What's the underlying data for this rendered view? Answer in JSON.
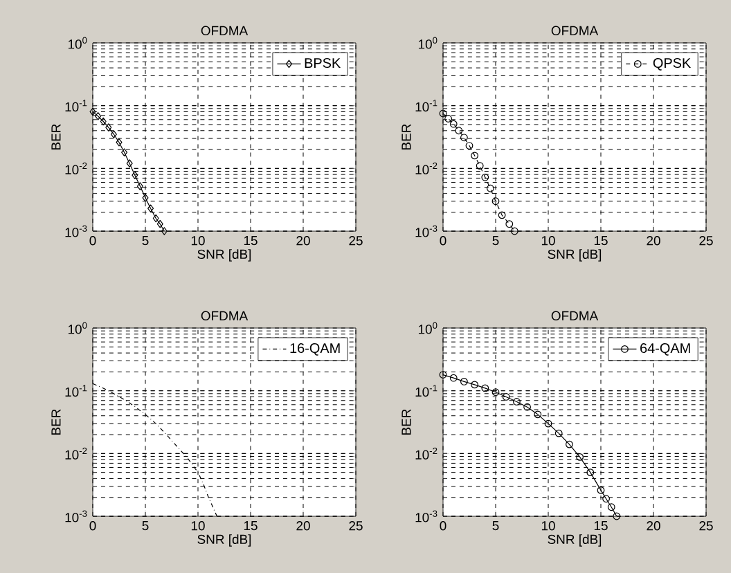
{
  "chart_data": [
    {
      "type": "line",
      "title": "OFDMA",
      "xlabel": "SNR [dB]",
      "ylabel": "BER",
      "log": "y",
      "grid": true,
      "legend": "top right",
      "marker": "diamond",
      "line_style": "solid",
      "xlim": [
        0,
        25
      ],
      "xticks": [
        0,
        5,
        10,
        15,
        20,
        25
      ],
      "ylim": [
        0.001,
        1
      ],
      "yticks": [
        {
          "value": 0.001,
          "label": "10$^{-3}$"
        },
        {
          "value": 0.01,
          "label": "10$^{-2}$"
        },
        {
          "value": 0.1,
          "label": "10$^{-1}$"
        },
        {
          "value": 1,
          "label": "10$^{0}$"
        }
      ],
      "series": [
        {
          "name": "BPSK",
          "color": "#000000",
          "x": [
            0,
            0.5,
            1,
            1.5,
            2,
            2.5,
            3,
            3.5,
            4,
            4.5,
            5,
            5.5,
            6,
            6.4,
            6.8
          ],
          "values": [
            0.08,
            0.068,
            0.056,
            0.045,
            0.035,
            0.026,
            0.018,
            0.012,
            0.0078,
            0.0052,
            0.0034,
            0.0023,
            0.0016,
            0.0013,
            0.001
          ]
        }
      ]
    },
    {
      "type": "line",
      "title": "OFDMA",
      "xlabel": "SNR [dB]",
      "ylabel": "BER",
      "log": "y",
      "grid": true,
      "legend": "top right",
      "marker": "circle",
      "line_style": "dashed",
      "xlim": [
        0,
        25
      ],
      "xticks": [
        0,
        5,
        10,
        15,
        20,
        25
      ],
      "ylim": [
        0.001,
        1
      ],
      "yticks": [
        {
          "value": 0.001,
          "label": "10$^{-3}$"
        },
        {
          "value": 0.01,
          "label": "10$^{-2}$"
        },
        {
          "value": 0.1,
          "label": "10$^{-1}$"
        },
        {
          "value": 1,
          "label": "10$^{0}$"
        }
      ],
      "series": [
        {
          "name": "QPSK",
          "color": "#000000",
          "x": [
            0,
            0.5,
            1,
            1.5,
            2,
            2.5,
            3,
            3.5,
            4,
            4.5,
            5,
            5.6,
            6.3,
            6.8
          ],
          "values": [
            0.075,
            0.062,
            0.051,
            0.04,
            0.031,
            0.023,
            0.016,
            0.011,
            0.0072,
            0.0048,
            0.003,
            0.0018,
            0.0013,
            0.001
          ]
        }
      ]
    },
    {
      "type": "line",
      "title": "OFDMA",
      "xlabel": "SNR [dB]",
      "ylabel": "BER",
      "log": "y",
      "grid": true,
      "legend": "top right",
      "marker": "none",
      "line_style": "dashdot",
      "xlim": [
        0,
        25
      ],
      "xticks": [
        0,
        5,
        10,
        15,
        20,
        25
      ],
      "ylim": [
        0.001,
        1
      ],
      "yticks": [
        {
          "value": 0.001,
          "label": "10$^{-3}$"
        },
        {
          "value": 0.01,
          "label": "10$^{-2}$"
        },
        {
          "value": 0.1,
          "label": "10$^{-1}$"
        },
        {
          "value": 1,
          "label": "10$^{0}$"
        }
      ],
      "series": [
        {
          "name": "16-QAM",
          "color": "#000000",
          "x": [
            0,
            1,
            2,
            3,
            4,
            5,
            6,
            7,
            8,
            9,
            10,
            10.5,
            11,
            11.5,
            11.8
          ],
          "values": [
            0.13,
            0.11,
            0.09,
            0.072,
            0.056,
            0.042,
            0.03,
            0.02,
            0.013,
            0.0085,
            0.005,
            0.0033,
            0.002,
            0.0013,
            0.001
          ]
        }
      ]
    },
    {
      "type": "line",
      "title": "OFDMA",
      "xlabel": "SNR [dB]",
      "ylabel": "BER",
      "log": "y",
      "grid": true,
      "legend": "top right",
      "marker": "circle",
      "line_style": "solid",
      "xlim": [
        0,
        25
      ],
      "xticks": [
        0,
        5,
        10,
        15,
        20,
        25
      ],
      "ylim": [
        0.001,
        1
      ],
      "yticks": [
        {
          "value": 0.001,
          "label": "10$^{-3}$"
        },
        {
          "value": 0.01,
          "label": "10$^{-2}$"
        },
        {
          "value": 0.1,
          "label": "10$^{-1}$"
        },
        {
          "value": 1,
          "label": "10$^{0}$"
        }
      ],
      "series": [
        {
          "name": "64-QAM",
          "color": "#000000",
          "x": [
            0,
            1,
            2,
            3,
            4,
            5,
            6,
            7,
            8,
            9,
            10,
            11,
            12,
            13,
            14,
            15,
            15.5,
            16,
            16.5
          ],
          "values": [
            0.18,
            0.16,
            0.14,
            0.125,
            0.11,
            0.095,
            0.08,
            0.067,
            0.055,
            0.042,
            0.03,
            0.021,
            0.014,
            0.0088,
            0.005,
            0.0026,
            0.0019,
            0.0014,
            0.001
          ]
        }
      ]
    }
  ]
}
